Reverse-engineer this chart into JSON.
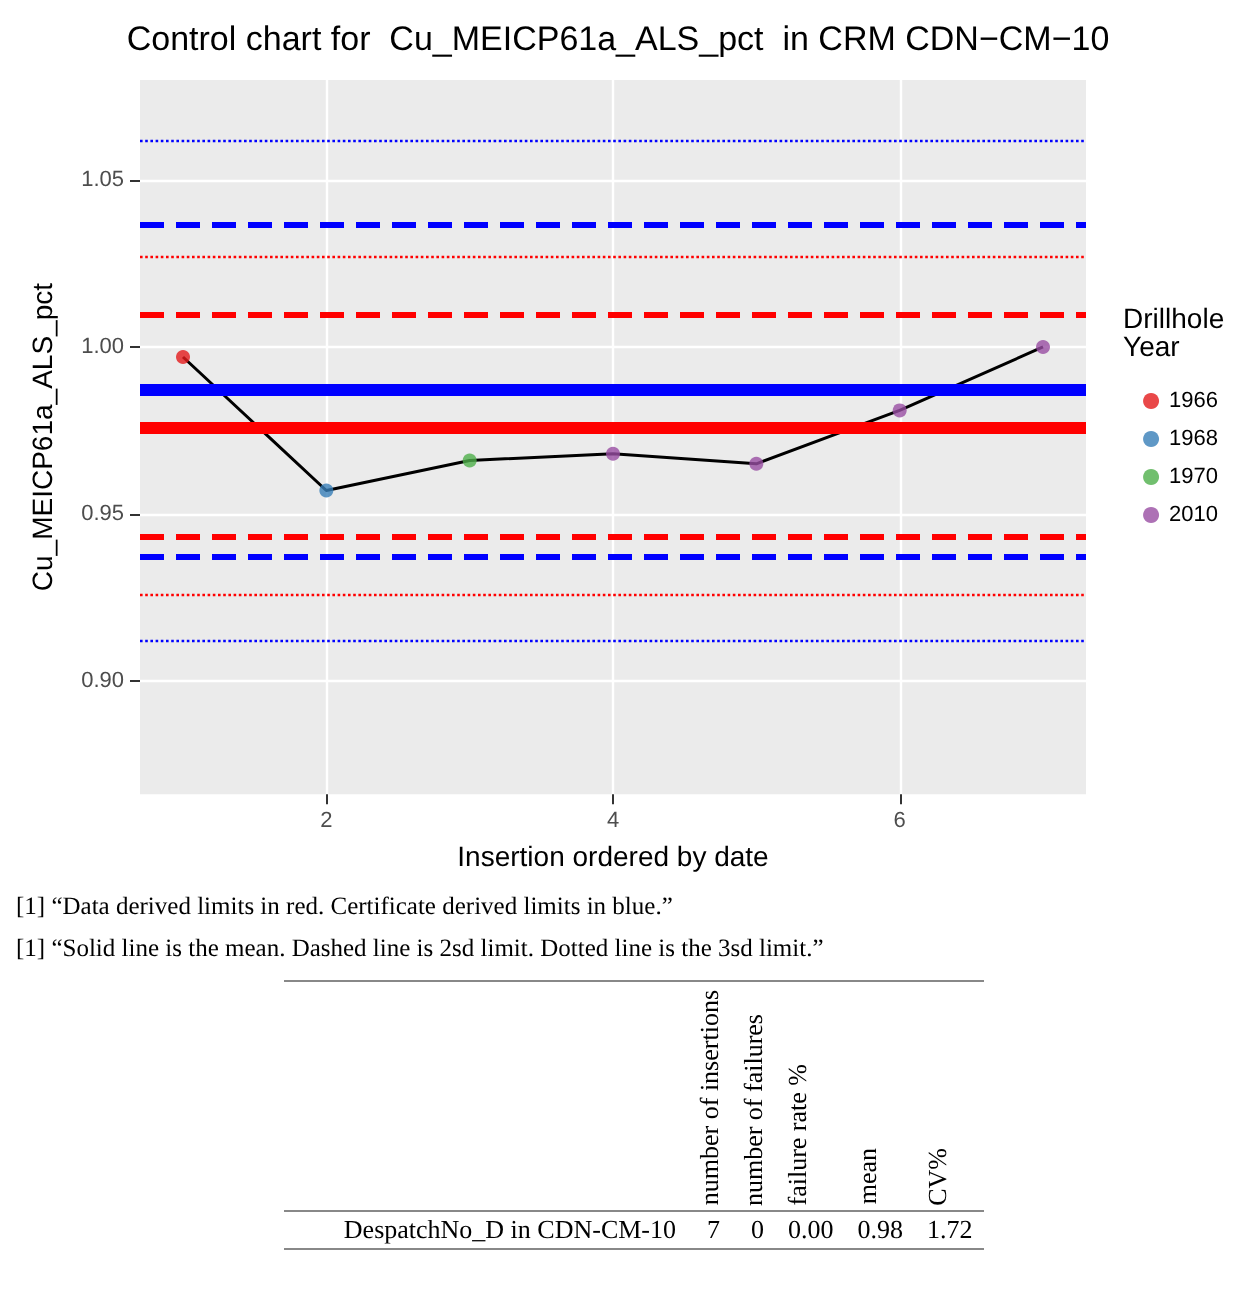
{
  "chart_data": [
    {
      "type": "scatter",
      "title": "Control chart for  Cu_MEICP61a_ALS_pct  in CRM CDN−CM−10",
      "xlabel": "Insertion ordered by date",
      "ylabel": "Cu_MEICP61a_ALS_pct",
      "legend_title": "Drillhole Year",
      "legend": "right",
      "grid": true,
      "marker": "circle",
      "x": [
        1,
        2,
        3,
        4,
        5,
        6,
        7
      ],
      "xlim": [
        0.7,
        7.3
      ],
      "xticks": [
        2,
        4,
        6
      ],
      "ylim": [
        0.866,
        1.08
      ],
      "yticks": [
        {
          "value": 0.9,
          "label": "0.90"
        },
        0.95,
        {
          "value": 1.0,
          "label": "1.00"
        },
        1.05
      ],
      "series": [
        {
          "type": "line",
          "color": "#000000",
          "marker": "none",
          "values": [
            0.997,
            0.957,
            0.966,
            0.968,
            0.965,
            0.981,
            1.0
          ]
        },
        {
          "name": "1966",
          "color": "#e41a1c",
          "x": [
            1
          ],
          "values": [
            0.997
          ]
        },
        {
          "name": "1968",
          "color": "#377eb8",
          "x": [
            2
          ],
          "values": [
            0.957
          ]
        },
        {
          "name": "1970",
          "color": "#4daf4a",
          "x": [
            3
          ],
          "values": [
            0.966
          ]
        },
        {
          "name": "2010",
          "color": "#984ea3",
          "x": [
            4,
            5,
            6,
            7
          ],
          "values": [
            0.968,
            0.965,
            0.981,
            1.0
          ]
        }
      ],
      "ref_lines": [
        {
          "axis": "y",
          "value": 1.062,
          "color": "#0000ff",
          "line_style": "dotted"
        },
        {
          "axis": "y",
          "value": 1.037,
          "color": "#0000ff",
          "line_style": "dashed"
        },
        {
          "axis": "y",
          "value": 1.027,
          "color": "#ff0000",
          "line_style": "dotted"
        },
        {
          "axis": "y",
          "value": 1.01,
          "color": "#ff0000",
          "line_style": "dashed"
        },
        {
          "axis": "y",
          "value": 0.987,
          "color": "#0000ff",
          "line_style": "solid"
        },
        {
          "axis": "y",
          "value": 0.976,
          "color": "#ff0000",
          "line_style": "solid"
        },
        {
          "axis": "y",
          "value": 0.943,
          "color": "#ff0000",
          "line_style": "dashed"
        },
        {
          "axis": "y",
          "value": 0.937,
          "color": "#0000ff",
          "line_style": "dashed"
        },
        {
          "axis": "y",
          "value": 0.926,
          "color": "#ff0000",
          "line_style": "dotted"
        },
        {
          "axis": "y",
          "value": 0.912,
          "color": "#0000ff",
          "line_style": "dotted"
        }
      ],
      "annotations": [
        "[1] “Data derived limits in red. Certificate derived limits in blue.”",
        "[1] “Solid line is the mean. Dashed line is 2sd limit. Dotted line is the 3sd limit.”"
      ]
    },
    {
      "type": "other",
      "categories": [
        "number of insertions",
        "number of failures",
        "failure rate %",
        "mean",
        "CV%"
      ],
      "y_categories": [
        "DespatchNo_D in CDN-CM-10"
      ],
      "cell_labels": [
        [
          "7",
          "0",
          "0.00",
          "0.98",
          "1.72"
        ]
      ]
    }
  ]
}
